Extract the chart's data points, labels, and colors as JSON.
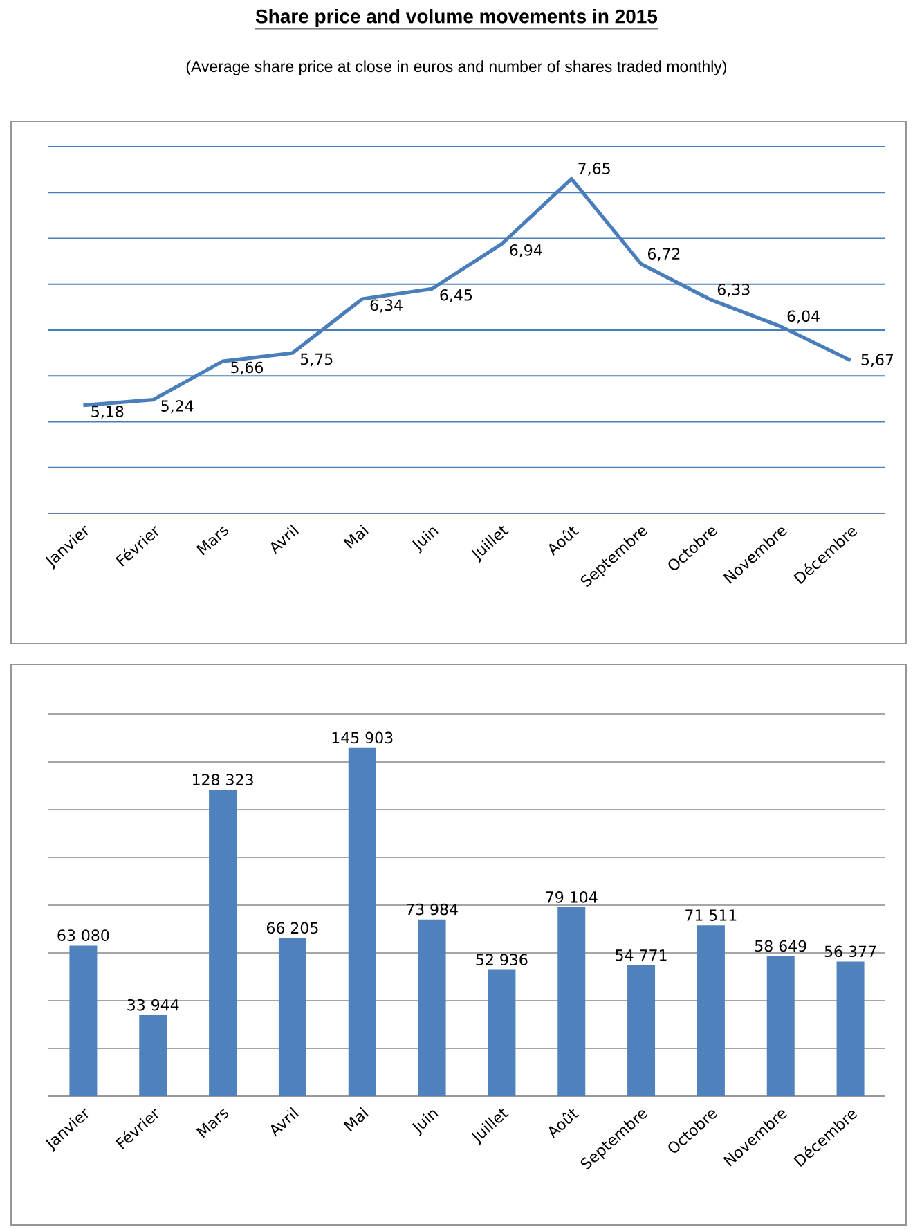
{
  "chart_data": [
    {
      "type": "line",
      "title": "Share price and volume movements in 2015",
      "subtitle": "(Average share price at close in euros and number of shares traded monthly)",
      "categories": [
        "Janvier",
        "Février",
        "Mars",
        "Avril",
        "Mai",
        "Juin",
        "Juillet",
        "Août",
        "Septembre",
        "Octobre",
        "Novembre",
        "Décembre"
      ],
      "values": [
        5.18,
        5.24,
        5.66,
        5.75,
        6.34,
        6.45,
        6.94,
        7.65,
        6.72,
        6.33,
        6.04,
        5.67
      ],
      "value_labels": [
        "5,18",
        "5,24",
        "5,66",
        "5,75",
        "6,34",
        "6,45",
        "6,94",
        "7,65",
        "6,72",
        "6,33",
        "6,04",
        "5,67"
      ],
      "color": "#4a7ebb",
      "ylim": [
        4,
        8
      ],
      "yticks": [
        {
          "value": 4,
          "label": null
        },
        {
          "value": 4.5,
          "label": null
        },
        {
          "value": 5,
          "label": null
        },
        {
          "value": 5.5,
          "label": null
        },
        {
          "value": 6,
          "label": null
        },
        {
          "value": 6.5,
          "label": null
        },
        {
          "value": 7,
          "label": null
        },
        {
          "value": 7.5,
          "label": null
        },
        {
          "value": 8,
          "label": null
        }
      ],
      "grid": "y",
      "tick_labels": "x",
      "marker": "none",
      "line_style": "solid"
    },
    {
      "type": "bar",
      "categories": [
        "Janvier",
        "Février",
        "Mars",
        "Avril",
        "Mai",
        "Juin",
        "Juillet",
        "Août",
        "Septembre",
        "Octobre",
        "Novembre",
        "Décembre"
      ],
      "values": [
        63080,
        33944,
        128323,
        66205,
        145903,
        73984,
        52936,
        79104,
        54771,
        71511,
        58649,
        56377
      ],
      "value_labels": [
        "63 080",
        "33 944",
        "128 323",
        "66 205",
        "145 903",
        "73 984",
        "52 936",
        "79 104",
        "54 771",
        "71 511",
        "58 649",
        "56 377"
      ],
      "color": "#4f81bd",
      "ylim": [
        0,
        160000
      ],
      "yticks": [
        {
          "value": 0,
          "label": null
        },
        {
          "value": 20000,
          "label": null
        },
        {
          "value": 40000,
          "label": null
        },
        {
          "value": 60000,
          "label": null
        },
        {
          "value": 80000,
          "label": null
        },
        {
          "value": 100000,
          "label": null
        },
        {
          "value": 120000,
          "label": null
        },
        {
          "value": 140000,
          "label": null
        },
        {
          "value": 160000,
          "label": null
        }
      ],
      "grid": "y",
      "tick_labels": "x"
    }
  ]
}
